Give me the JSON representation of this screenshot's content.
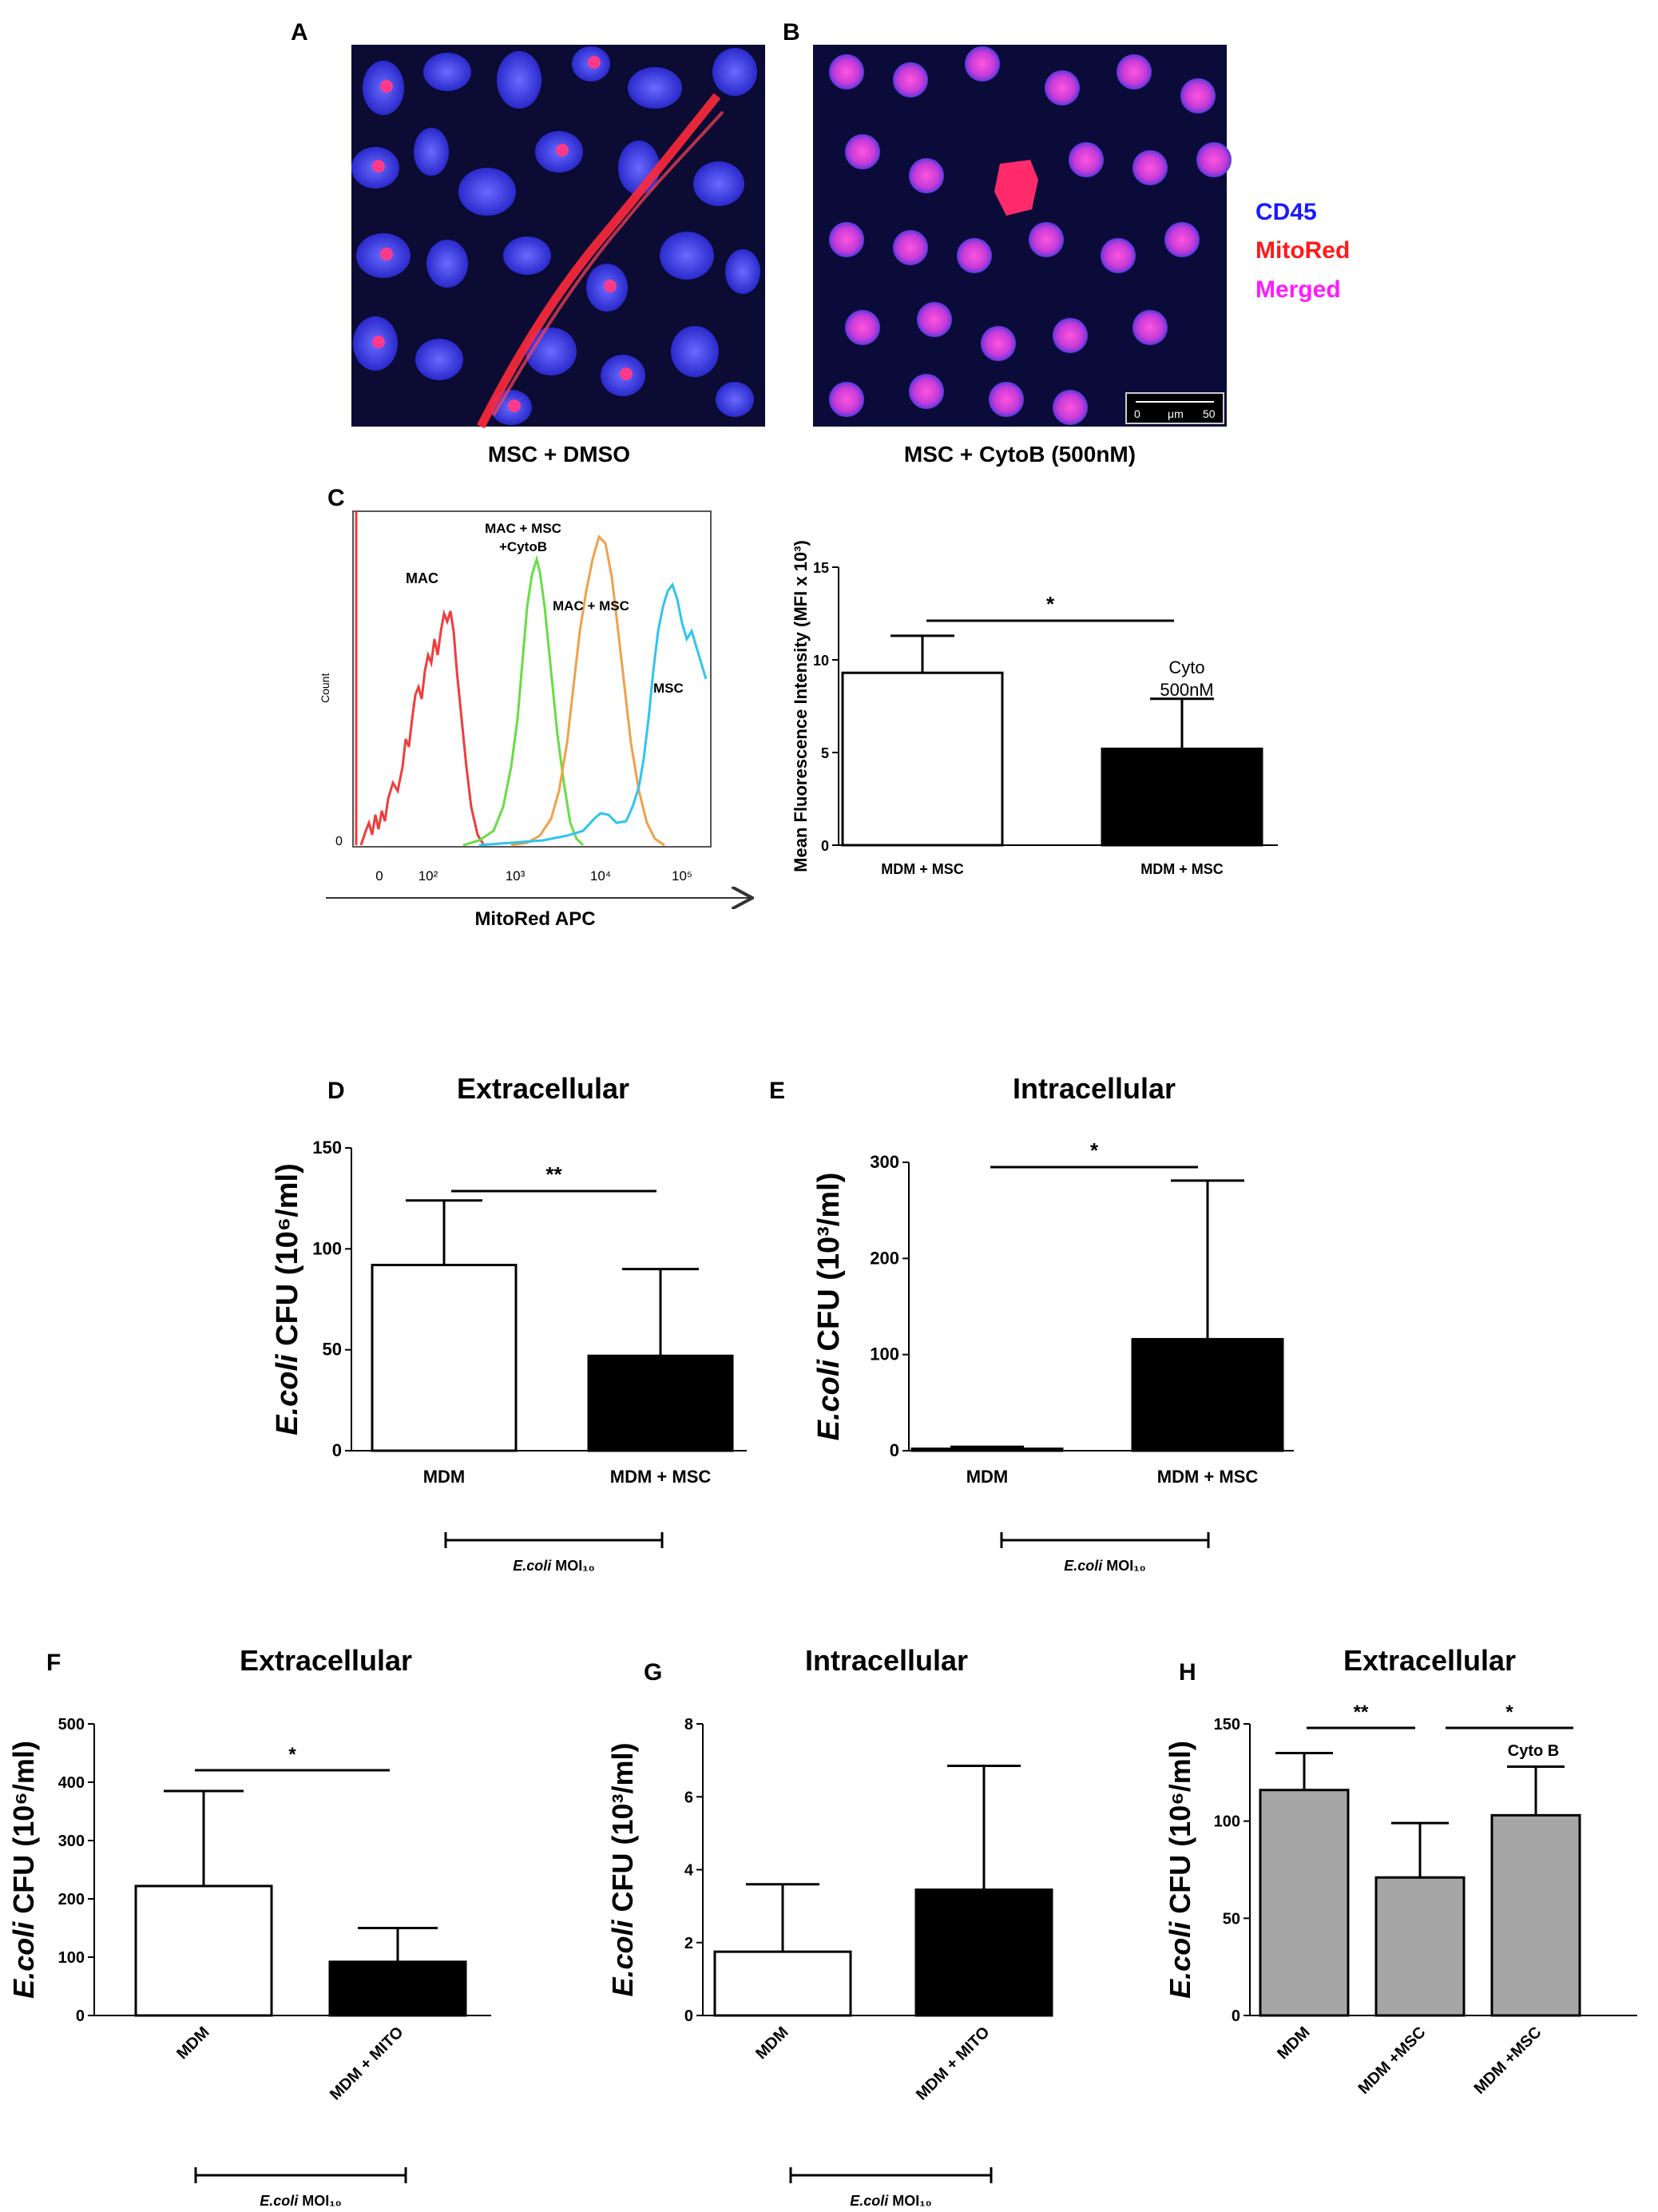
{
  "panels": {
    "A": {
      "letter": "A",
      "caption": "MSC + DMSO"
    },
    "B": {
      "letter": "B",
      "caption": "MSC + CytoB (500nM)",
      "scalebar": {
        "min": "0",
        "unit": "μm",
        "max": "50"
      }
    },
    "legend": [
      {
        "label": "CD45",
        "color": "#1a1aff"
      },
      {
        "label": "MitoRed",
        "color": "#ff1a1a"
      },
      {
        "label": "Merged",
        "color": "#ff1aff"
      }
    ],
    "C": {
      "letter": "C"
    },
    "D": {
      "letter": "D"
    },
    "E": {
      "letter": "E"
    },
    "F": {
      "letter": "F"
    },
    "G": {
      "letter": "G"
    },
    "H": {
      "letter": "H"
    }
  },
  "colors": {
    "open_bar": "#ffffff",
    "filled_bar": "#000000",
    "grey_bar": "#a6a6a6",
    "mac": "#f03c3c",
    "cytob": "#66dd44",
    "mac_msc": "#f0a04b",
    "msc": "#2ec4f0"
  },
  "chart_data": [
    {
      "id": "C-histogram",
      "type": "line",
      "xlabel": "MitoRed APC",
      "ylabel": "Count",
      "x_scale": "log",
      "xticks": [
        "0",
        "10²",
        "10³",
        "10⁴",
        "10⁵"
      ],
      "yticks": [
        "0"
      ],
      "series": [
        {
          "name": "MAC",
          "color": "#f03c3c"
        },
        {
          "name": "MAC + MSC +CytoB",
          "color": "#66dd44"
        },
        {
          "name": "MAC + MSC",
          "color": "#f0a04b"
        },
        {
          "name": "MSC",
          "color": "#2ec4f0"
        }
      ]
    },
    {
      "id": "C-bar",
      "type": "bar",
      "ylabel": "Mean Fluorescence Intensity (MFI x 10³)",
      "ylim": [
        0,
        15
      ],
      "yticks": [
        "0",
        "5",
        "10",
        "15"
      ],
      "categories": [
        "MDM + MSC",
        "MDM + MSC"
      ],
      "values": [
        9.3,
        5.2
      ],
      "errors": [
        2.0,
        2.7
      ],
      "annotation": "Cyto 500nM",
      "significance": "*"
    },
    {
      "id": "D",
      "type": "bar",
      "title": "Extracellular",
      "ylabel": "E.coli CFU (10⁶/ml)",
      "ylim": [
        0,
        150
      ],
      "yticks": [
        "0",
        "50",
        "100",
        "150"
      ],
      "categories": [
        "MDM",
        "MDM + MSC"
      ],
      "values": [
        92,
        47
      ],
      "errors": [
        32,
        43
      ],
      "significance": "**",
      "bracket_label": "E.coli MOI₁₀"
    },
    {
      "id": "E",
      "type": "bar",
      "title": "Intracellular",
      "ylabel": "E.coli CFU (10³/ml)",
      "ylim": [
        0,
        300
      ],
      "yticks": [
        "0",
        "100",
        "200",
        "300"
      ],
      "categories": [
        "MDM",
        "MDM + MSC"
      ],
      "values": [
        2,
        116
      ],
      "errors": [
        2,
        165
      ],
      "significance": "*",
      "bracket_label": "E.coli MOI₁₀"
    },
    {
      "id": "F",
      "type": "bar",
      "title": "Extracellular",
      "ylabel": "E.coli CFU (10⁶/ml)",
      "ylim": [
        0,
        500
      ],
      "yticks": [
        "0",
        "100",
        "200",
        "300",
        "400",
        "500"
      ],
      "categories": [
        "MDM",
        "MDM + MITO"
      ],
      "values": [
        222,
        92
      ],
      "errors": [
        163,
        58
      ],
      "significance": "*",
      "bracket_label": "E.coli MOI₁₀"
    },
    {
      "id": "G",
      "type": "bar",
      "title": "Intracellular",
      "ylabel": "E.coli CFU (10³/ml)",
      "ylim": [
        0,
        8
      ],
      "yticks": [
        "0",
        "2",
        "4",
        "6",
        "8"
      ],
      "categories": [
        "MDM",
        "MDM + MITO"
      ],
      "values": [
        1.75,
        3.45
      ],
      "errors": [
        1.85,
        3.4
      ],
      "bracket_label": "E.coli MOI₁₀"
    },
    {
      "id": "H",
      "type": "bar",
      "title": "Extracellular",
      "ylabel": "E.coli CFU (10⁶/ml)",
      "ylim": [
        0,
        150
      ],
      "yticks": [
        "0",
        "50",
        "100",
        "150"
      ],
      "categories": [
        "MDM",
        "MDM +MSC",
        "MDM +MSC"
      ],
      "values": [
        116,
        71,
        103
      ],
      "errors": [
        19,
        28,
        25
      ],
      "annotation": "Cyto B",
      "significance": [
        "**",
        "*"
      ]
    }
  ]
}
